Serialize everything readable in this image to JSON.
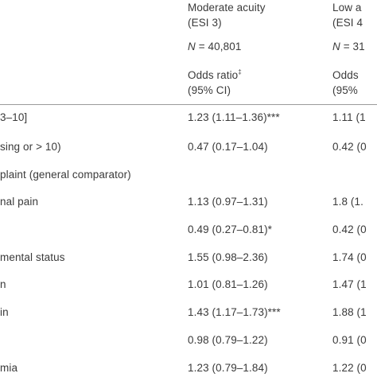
{
  "header": {
    "col1": {
      "title_line1": "Moderate acuity",
      "title_line2": "(ESI 3)",
      "n_var": "N",
      "n_value": " = 40,801",
      "stat_line1": "Odds ratio",
      "stat_sup": "‡",
      "stat_line2": "(95% CI)"
    },
    "col2": {
      "title_line1": "Low a",
      "title_line2": "(ESI 4",
      "n_var": "N",
      "n_value": " = 31",
      "stat_line1": "Odds",
      "stat_line2": "(95%"
    }
  },
  "rows": [
    {
      "label": "3–10]",
      "col1": "1.23 (1.11–1.36)***",
      "col2": "1.11 (1"
    },
    {
      "label": "sing or > 10)",
      "col1": "0.47 (0.17–1.04)",
      "col2": "0.42 (0"
    },
    {
      "label": "plaint (general comparator)",
      "col1": "",
      "col2": ""
    },
    {
      "label": "nal pain",
      "col1": "1.13 (0.97–1.31)",
      "col2": "1.8 (1."
    },
    {
      "label": "",
      "col1": "0.49 (0.27–0.81)*",
      "col2": "0.42 (0"
    },
    {
      "label": "mental status",
      "col1": "1.55 (0.98–2.36)",
      "col2": "1.74 (0"
    },
    {
      "label": "n",
      "col1": "1.01 (0.81–1.26)",
      "col2": "1.47 (1"
    },
    {
      "label": "in",
      "col1": "1.43 (1.17–1.73)***",
      "col2": "1.88 (1"
    },
    {
      "label": "",
      "col1": "0.98 (0.79–1.22)",
      "col2": "0.91 (0"
    },
    {
      "label": "mia",
      "col1": "1.23 (0.79–1.84)",
      "col2": "1.22 (0"
    }
  ]
}
